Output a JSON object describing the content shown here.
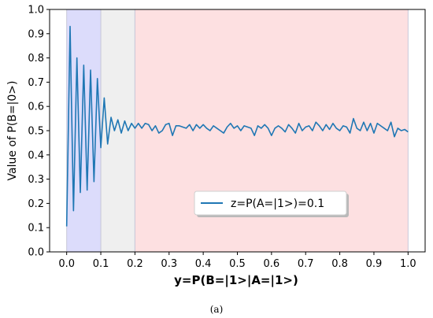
{
  "chart_data": {
    "type": "line",
    "xlabel": "y=P(B=|1>|A=|1>)",
    "ylabel": "Value of P(B=|0>)",
    "xlim": [
      -0.05,
      1.05
    ],
    "ylim": [
      0.0,
      1.0
    ],
    "x_ticks": [
      "0.0",
      "0.1",
      "0.2",
      "0.3",
      "0.4",
      "0.5",
      "0.6",
      "0.7",
      "0.8",
      "0.9",
      "1.0"
    ],
    "y_ticks": [
      "0.0",
      "0.1",
      "0.2",
      "0.3",
      "0.4",
      "0.5",
      "0.6",
      "0.7",
      "0.8",
      "0.9",
      "1.0"
    ],
    "grid": false,
    "legend_position": "center-right",
    "shaded_regions": [
      {
        "x_start": 0.0,
        "x_end": 0.1,
        "color": "#dcdcfb"
      },
      {
        "x_start": 0.1,
        "x_end": 0.2,
        "color": "#efefef"
      },
      {
        "x_start": 0.2,
        "x_end": 1.0,
        "color": "#fde0e1"
      }
    ],
    "series": [
      {
        "name": "z=P(A=|1>)=0.1",
        "color": "#1f77b4",
        "x": [
          0.0,
          0.01,
          0.02,
          0.03,
          0.04,
          0.05,
          0.06,
          0.07,
          0.08,
          0.09,
          0.1,
          0.11,
          0.12,
          0.13,
          0.14,
          0.15,
          0.16,
          0.17,
          0.18,
          0.19,
          0.2,
          0.21,
          0.22,
          0.23,
          0.24,
          0.25,
          0.26,
          0.27,
          0.28,
          0.29,
          0.3,
          0.31,
          0.32,
          0.33,
          0.34,
          0.35,
          0.36,
          0.37,
          0.38,
          0.39,
          0.4,
          0.41,
          0.42,
          0.43,
          0.44,
          0.45,
          0.46,
          0.47,
          0.48,
          0.49,
          0.5,
          0.51,
          0.52,
          0.53,
          0.54,
          0.55,
          0.56,
          0.57,
          0.58,
          0.59,
          0.6,
          0.61,
          0.62,
          0.63,
          0.64,
          0.65,
          0.66,
          0.67,
          0.68,
          0.69,
          0.7,
          0.71,
          0.72,
          0.73,
          0.74,
          0.75,
          0.76,
          0.77,
          0.78,
          0.79,
          0.8,
          0.81,
          0.82,
          0.83,
          0.84,
          0.85,
          0.86,
          0.87,
          0.88,
          0.89,
          0.9,
          0.91,
          0.92,
          0.93,
          0.94,
          0.95,
          0.96,
          0.97,
          0.98,
          0.99,
          1.0
        ],
        "values": [
          0.105,
          0.93,
          0.17,
          0.8,
          0.245,
          0.77,
          0.255,
          0.75,
          0.29,
          0.715,
          0.43,
          0.635,
          0.445,
          0.555,
          0.5,
          0.545,
          0.49,
          0.54,
          0.5,
          0.53,
          0.51,
          0.53,
          0.51,
          0.53,
          0.525,
          0.5,
          0.52,
          0.49,
          0.5,
          0.525,
          0.53,
          0.48,
          0.52,
          0.52,
          0.515,
          0.51,
          0.525,
          0.5,
          0.525,
          0.51,
          0.525,
          0.51,
          0.5,
          0.52,
          0.51,
          0.5,
          0.49,
          0.515,
          0.53,
          0.51,
          0.52,
          0.5,
          0.52,
          0.515,
          0.51,
          0.48,
          0.52,
          0.51,
          0.525,
          0.51,
          0.48,
          0.51,
          0.52,
          0.51,
          0.495,
          0.525,
          0.51,
          0.49,
          0.53,
          0.5,
          0.515,
          0.52,
          0.5,
          0.535,
          0.52,
          0.5,
          0.525,
          0.505,
          0.53,
          0.51,
          0.5,
          0.52,
          0.515,
          0.49,
          0.55,
          0.51,
          0.5,
          0.535,
          0.5,
          0.53,
          0.49,
          0.53,
          0.52,
          0.51,
          0.5,
          0.535,
          0.475,
          0.51,
          0.5,
          0.505,
          0.495
        ]
      }
    ]
  },
  "caption": "(a)"
}
